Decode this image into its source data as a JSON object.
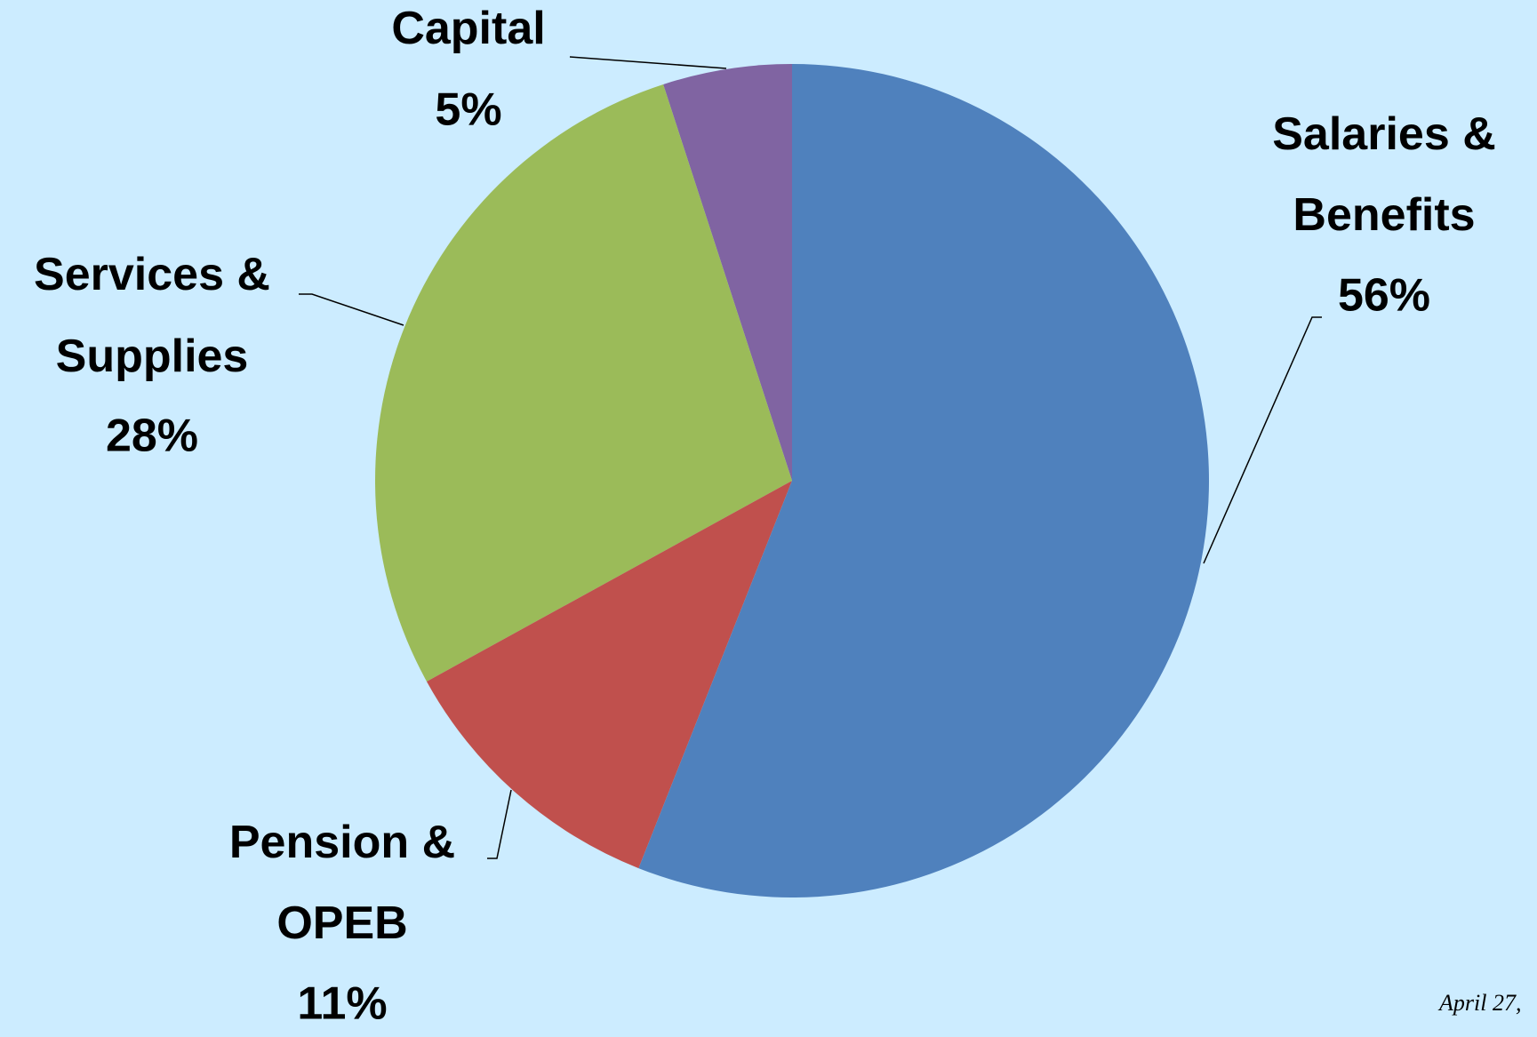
{
  "chart_data": {
    "type": "pie",
    "categories": [
      "Salaries &\nBenefits",
      "Pension &\nOPEB",
      "Services &\nSupplies",
      "Capital"
    ],
    "values": [
      56,
      11,
      28,
      5
    ],
    "value_labels": [
      "56%",
      "11%",
      "28%",
      "5%"
    ],
    "colors": [
      "#4F81BD",
      "#C0504D",
      "#9BBB59",
      "#8064A2"
    ],
    "footer": "April 27,"
  }
}
